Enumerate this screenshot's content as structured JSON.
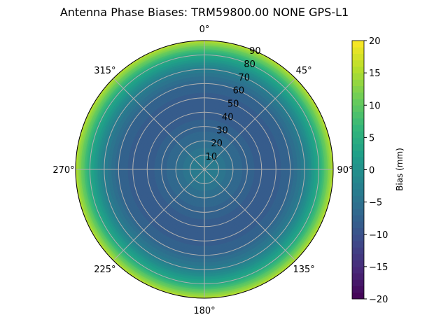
{
  "chart_data": {
    "type": "heatmap",
    "subtype": "polar-contour",
    "title": "Antenna Phase Biases: TRM59800.00     NONE GPS-L1",
    "angular_ticks": [
      "0°",
      "45°",
      "90°",
      "135°",
      "180°",
      "225°",
      "270°",
      "315°"
    ],
    "radial_ticks": [
      "10",
      "20",
      "30",
      "40",
      "50",
      "60",
      "70",
      "80",
      "90"
    ],
    "radial_range": [
      0,
      90
    ],
    "theta_direction": "clockwise",
    "theta_zero": "top",
    "grid": true,
    "colormap": "viridis",
    "colorbar": {
      "label": "Bias (mm)",
      "range": [
        -20,
        20
      ],
      "ticks": [
        "-20",
        "-15",
        "-10",
        "-5",
        "0",
        "5",
        "10",
        "15",
        "20"
      ]
    },
    "profile": {
      "zenith_deg": [
        0,
        10,
        20,
        30,
        40,
        50,
        60,
        70,
        80,
        90
      ],
      "bias_mm": [
        -3,
        -4,
        -6,
        -7.5,
        -8.5,
        -8.5,
        -7,
        -3,
        4,
        16
      ]
    }
  }
}
